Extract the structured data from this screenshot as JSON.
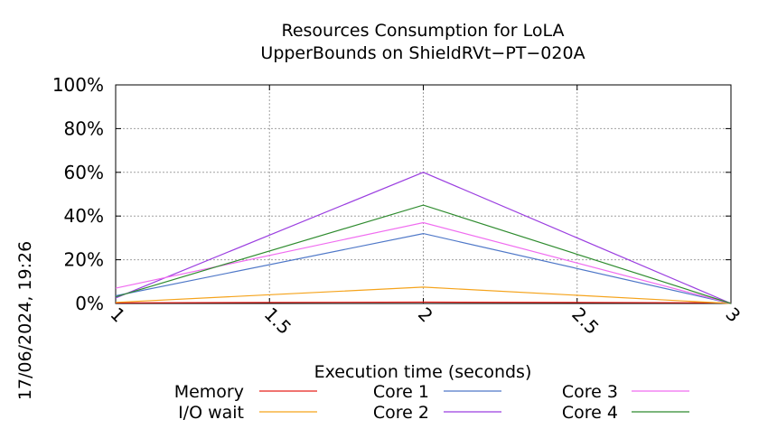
{
  "timestamp": "17/06/2024, 19:26",
  "chart_data": {
    "type": "line",
    "title": [
      "Resources Consumption for LoLA",
      "UpperBounds on ShieldRVt−PT−020A"
    ],
    "xlabel": "Execution time (seconds)",
    "ylabel": "",
    "xlim": [
      1,
      3
    ],
    "ylim": [
      0,
      100
    ],
    "x_ticks": [
      1,
      1.5,
      2,
      2.5,
      3
    ],
    "x_tick_labels": [
      "1",
      "1.5",
      "2",
      "2.5",
      "3"
    ],
    "y_ticks": [
      0,
      20,
      40,
      60,
      80,
      100
    ],
    "y_tick_labels": [
      "0%",
      "20%",
      "40%",
      "60%",
      "80%",
      "100%"
    ],
    "grid": true,
    "legend_position": "bottom",
    "x": [
      1,
      2,
      3
    ],
    "series": [
      {
        "name": "Memory",
        "color": "#e8201a",
        "values": [
          0.3,
          0.6,
          0.3
        ]
      },
      {
        "name": "I/O wait",
        "color": "#f5a31b",
        "values": [
          0.5,
          7.5,
          0.0
        ]
      },
      {
        "name": "Core 1",
        "color": "#4f78c8",
        "values": [
          3.5,
          32,
          0.0
        ]
      },
      {
        "name": "Core 2",
        "color": "#9b3fe0",
        "values": [
          2.5,
          60,
          0.0
        ]
      },
      {
        "name": "Core 3",
        "color": "#f06cf0",
        "values": [
          7,
          37,
          0.0
        ]
      },
      {
        "name": "Core 4",
        "color": "#2e8b2e",
        "values": [
          3,
          45,
          0.0
        ]
      }
    ]
  }
}
